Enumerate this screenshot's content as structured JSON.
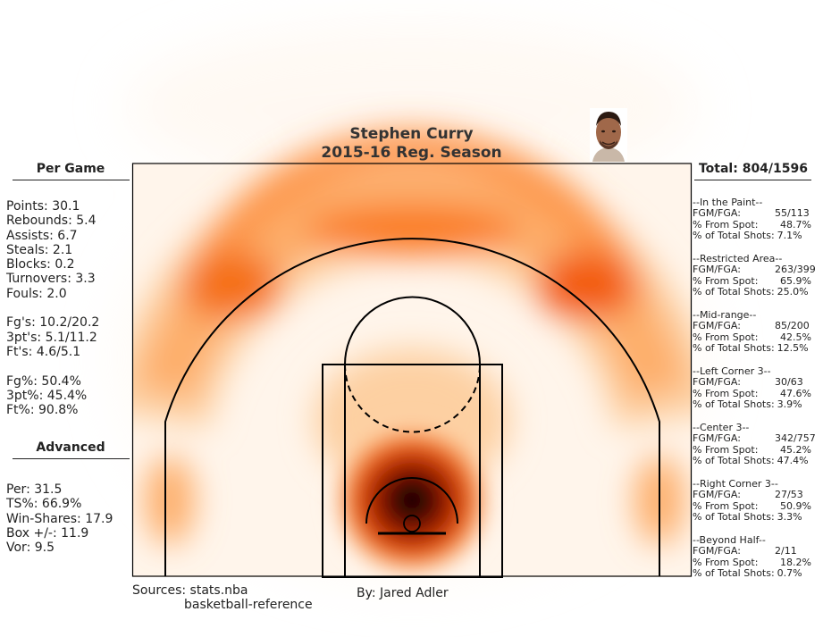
{
  "title": {
    "player": "Stephen Curry",
    "season": "2015-16 Reg. Season"
  },
  "per_game": {
    "header": "Per Game",
    "lines": [
      "Points: 30.1",
      "Rebounds: 5.4",
      "Assists: 6.7",
      "Steals: 2.1",
      "Blocks: 0.2",
      "Turnovers: 3.3",
      "Fouls: 2.0",
      "",
      "Fg's: 10.2/20.2",
      "3pt's: 5.1/11.2",
      "Ft's: 4.6/5.1",
      "",
      "Fg%: 50.4%",
      "3pt%: 45.4%",
      "Ft%: 90.8%"
    ]
  },
  "advanced": {
    "header": "Advanced",
    "lines": [
      "Per: 31.5",
      "TS%: 66.9%",
      "Win-Shares: 17.9",
      "Box +/-: 11.9",
      "Vor: 9.5"
    ]
  },
  "totals": {
    "header": "Total: 804/1596",
    "zones": [
      {
        "name": "--In the Paint--",
        "fgm_label": "FGM/FGA:",
        "fgm": "55/113",
        "spot_label": "% From Spot:",
        "spot": "48.7%",
        "total_label": "% of Total Shots:",
        "total": "7.1%"
      },
      {
        "name": "--Restricted Area--",
        "fgm_label": "FGM/FGA:",
        "fgm": "263/399",
        "spot_label": "% From Spot:",
        "spot": "65.9%",
        "total_label": "% of Total Shots:",
        "total": "25.0%"
      },
      {
        "name": "--Mid-range--",
        "fgm_label": "FGM/FGA:",
        "fgm": "85/200",
        "spot_label": "% From Spot:",
        "spot": "42.5%",
        "total_label": "% of Total Shots:",
        "total": "12.5%"
      },
      {
        "name": "--Left Corner 3--",
        "fgm_label": "FGM/FGA:",
        "fgm": "30/63",
        "spot_label": "% From Spot:",
        "spot": "47.6%",
        "total_label": "% of Total Shots:",
        "total": "3.9%"
      },
      {
        "name": "--Center 3--",
        "fgm_label": "FGM/FGA:",
        "fgm": "342/757",
        "spot_label": "% From Spot:",
        "spot": "45.2%",
        "total_label": "% of Total Shots:",
        "total": "47.4%"
      },
      {
        "name": "--Right Corner 3--",
        "fgm_label": "FGM/FGA:",
        "fgm": "27/53",
        "spot_label": "% From Spot:",
        "spot": "50.9%",
        "total_label": "% of Total Shots:",
        "total": "3.3%"
      },
      {
        "name": "--Beyond Half--",
        "fgm_label": "FGM/FGA:",
        "fgm": "2/11",
        "spot_label": "% From Spot:",
        "spot": "18.2%",
        "total_label": "% of Total Shots:",
        "total": "0.7%"
      }
    ]
  },
  "sources": {
    "label": "Sources: stats.nba",
    "second": "basketball-reference"
  },
  "byline": "By: Jared Adler",
  "colors": {
    "heat_low": "#fff5eb",
    "heat_mid": "#fd8d3c",
    "heat_high": "#7f2704",
    "heat_peak": "#000000",
    "court_lines": "#000000"
  }
}
